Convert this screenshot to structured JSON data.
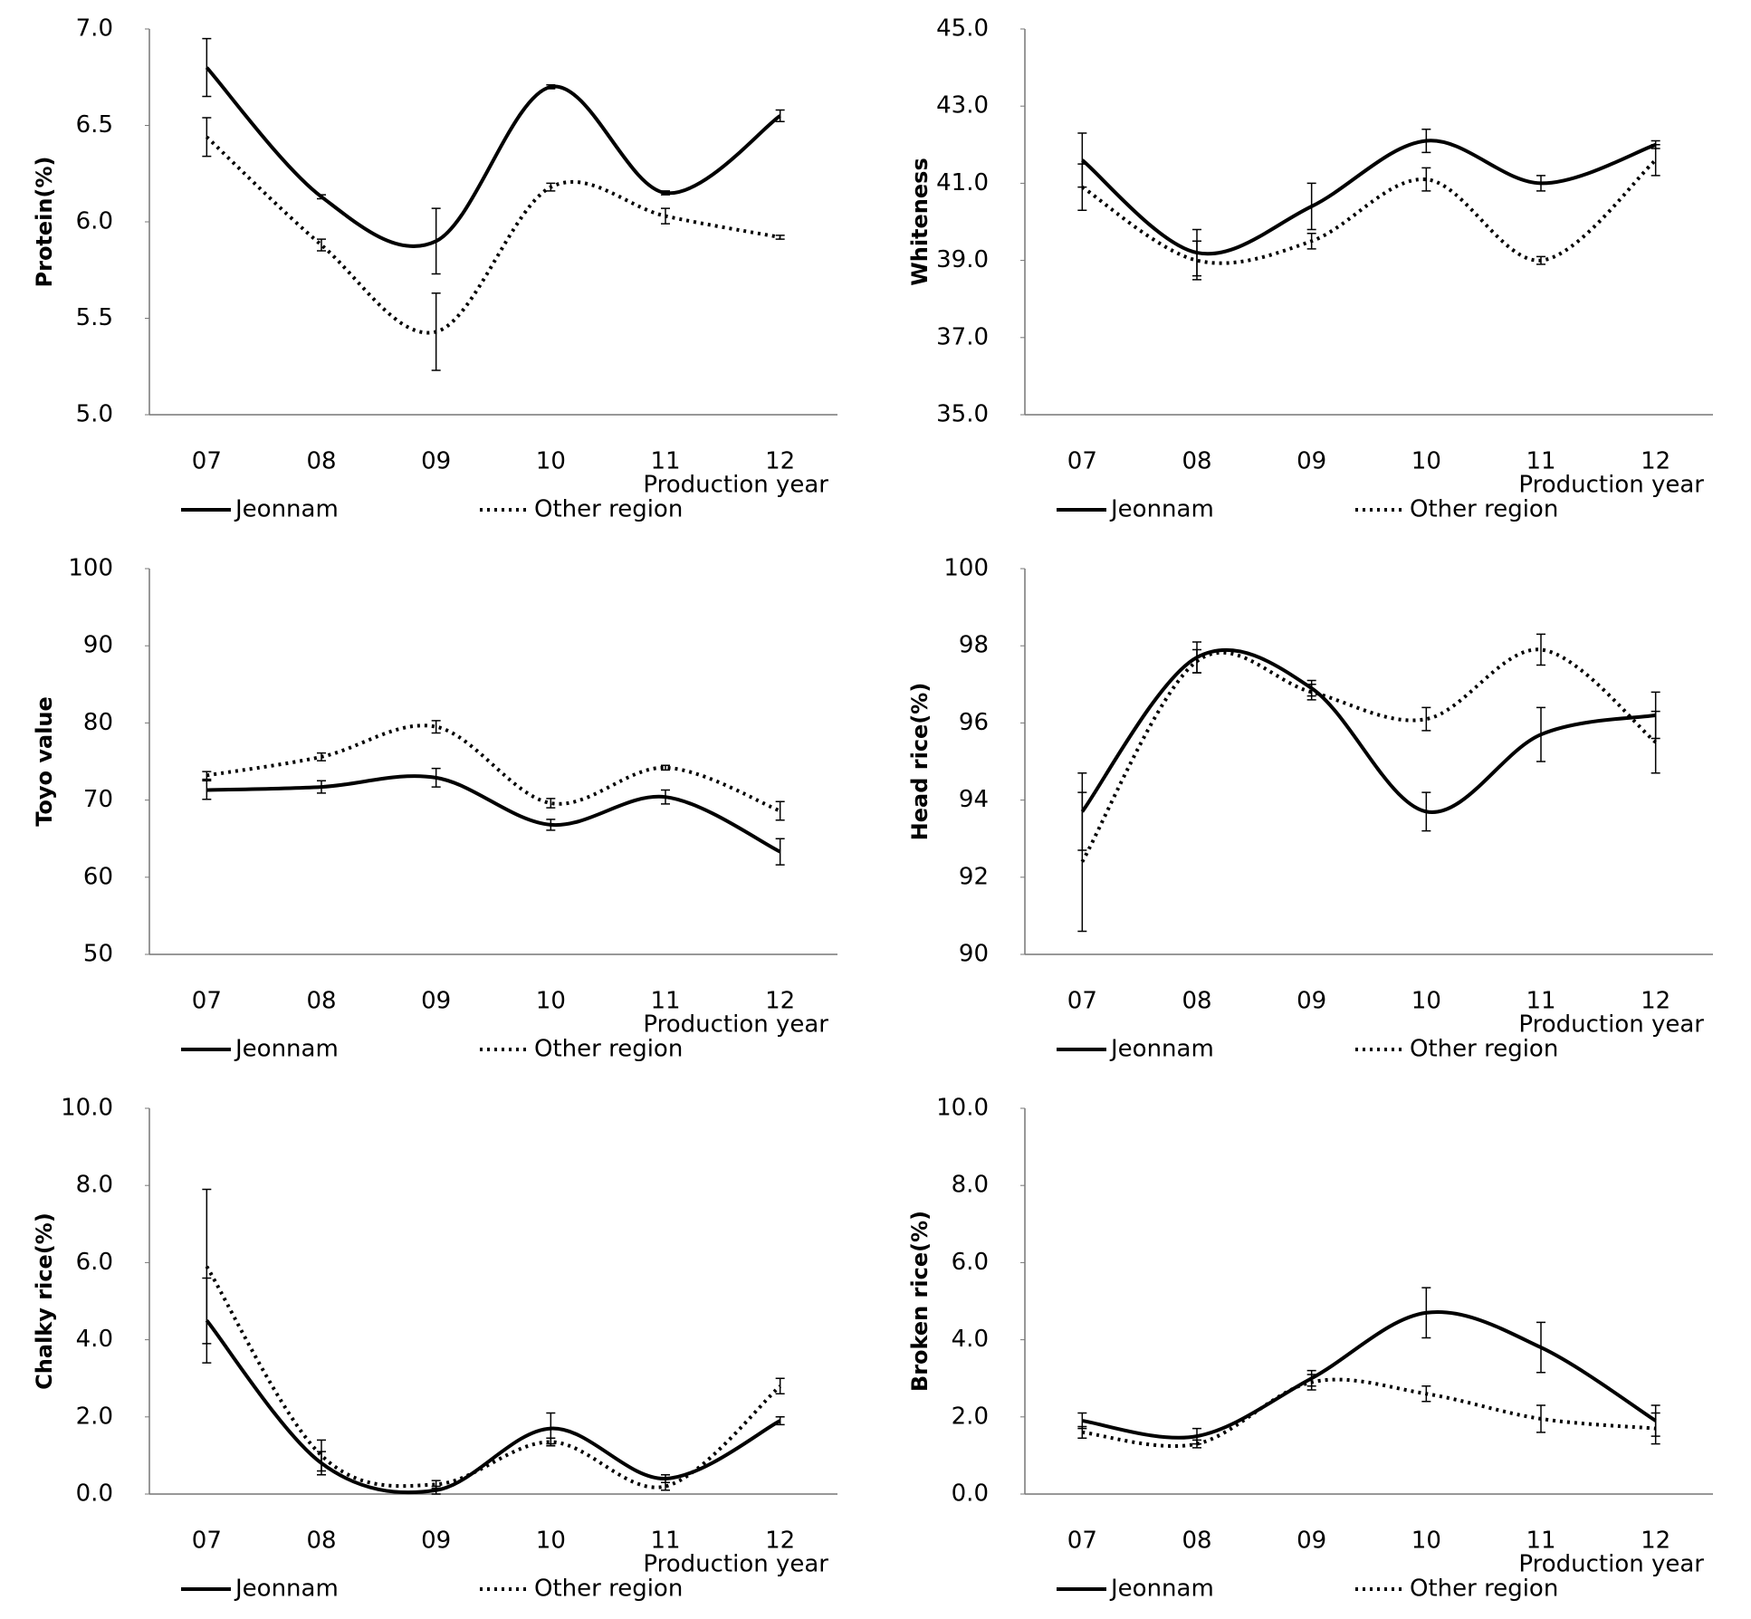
{
  "chart_data": [
    {
      "type": "line",
      "y_label": "Protein(%)",
      "x_label": "Production year",
      "categories": [
        "07",
        "08",
        "09",
        "10",
        "11",
        "12"
      ],
      "ylim": [
        5,
        7
      ],
      "yticks": [
        {
          "value": 5,
          "label": "5.0"
        },
        5.5,
        {
          "value": 6,
          "label": "6.0"
        },
        6.5,
        {
          "value": 7,
          "label": "7.0"
        }
      ],
      "series": [
        {
          "name": "Jeonnam",
          "color": "#000000",
          "style": "solid",
          "values": [
            6.8,
            6.13,
            5.9,
            6.7,
            6.15,
            6.55
          ],
          "errors": [
            0.15,
            0.01,
            0.17,
            0.01,
            0.01,
            0.03
          ]
        },
        {
          "name": "Other region",
          "color": "#000000",
          "style": "dotted",
          "values": [
            6.44,
            5.88,
            5.43,
            6.18,
            6.03,
            5.92
          ],
          "errors": [
            0.1,
            0.03,
            0.2,
            0.02,
            0.04,
            0.01
          ]
        }
      ]
    },
    {
      "type": "line",
      "y_label": "Whiteness",
      "x_label": "Production year",
      "categories": [
        "07",
        "08",
        "09",
        "10",
        "11",
        "12"
      ],
      "ylim": [
        35,
        45
      ],
      "yticks": [
        {
          "value": 35,
          "label": "35.0"
        },
        {
          "value": 37,
          "label": "37.0"
        },
        {
          "value": 39,
          "label": "39.0"
        },
        {
          "value": 41,
          "label": "41.0"
        },
        {
          "value": 43,
          "label": "43.0"
        },
        {
          "value": 45,
          "label": "45.0"
        }
      ],
      "series": [
        {
          "name": "Jeonnam",
          "color": "#000000",
          "style": "solid",
          "values": [
            41.6,
            39.2,
            40.4,
            42.1,
            41.0,
            42.0
          ],
          "errors": [
            0.7,
            0.6,
            0.6,
            0.3,
            0.2,
            0.1
          ]
        },
        {
          "name": "Other region",
          "color": "#000000",
          "style": "dotted",
          "values": [
            40.9,
            39.0,
            39.5,
            41.1,
            39.0,
            41.6
          ],
          "errors": [
            0.6,
            0.5,
            0.2,
            0.3,
            0.1,
            0.4
          ]
        }
      ]
    },
    {
      "type": "line",
      "y_label": "Toyo value",
      "x_label": "Production year",
      "categories": [
        "07",
        "08",
        "09",
        "10",
        "11",
        "12"
      ],
      "ylim": [
        50,
        100
      ],
      "yticks": [
        50,
        60,
        70,
        80,
        90,
        100
      ],
      "series": [
        {
          "name": "Jeonnam",
          "color": "#000000",
          "style": "solid",
          "values": [
            71.3,
            71.7,
            72.9,
            66.8,
            70.4,
            63.3
          ],
          "errors": [
            1.2,
            0.8,
            1.2,
            0.7,
            0.9,
            1.7
          ]
        },
        {
          "name": "Other region",
          "color": "#000000",
          "style": "dotted",
          "values": [
            73.2,
            75.6,
            79.5,
            69.6,
            74.2,
            68.6
          ],
          "errors": [
            0.5,
            0.5,
            0.8,
            0.6,
            0.3,
            1.2
          ]
        }
      ]
    },
    {
      "type": "line",
      "y_label": "Head rice(%)",
      "x_label": "Production year",
      "categories": [
        "07",
        "08",
        "09",
        "10",
        "11",
        "12"
      ],
      "ylim": [
        90,
        100
      ],
      "yticks": [
        90,
        92,
        94,
        96,
        98,
        100
      ],
      "series": [
        {
          "name": "Jeonnam",
          "color": "#000000",
          "style": "solid",
          "values": [
            93.7,
            97.7,
            96.9,
            93.7,
            95.7,
            96.2
          ],
          "errors": [
            1.0,
            0.4,
            0.2,
            0.5,
            0.7,
            0.6
          ]
        },
        {
          "name": "Other region",
          "color": "#000000",
          "style": "dotted",
          "values": [
            92.4,
            97.6,
            96.8,
            96.1,
            97.9,
            95.5
          ],
          "errors": [
            1.8,
            0.3,
            0.2,
            0.3,
            0.4,
            0.8
          ]
        }
      ]
    },
    {
      "type": "line",
      "y_label": "Chalky rice(%)",
      "x_label": "Production year",
      "categories": [
        "07",
        "08",
        "09",
        "10",
        "11",
        "12"
      ],
      "ylim": [
        0,
        10
      ],
      "yticks": [
        {
          "value": 0,
          "label": "0.0"
        },
        {
          "value": 2,
          "label": "2.0"
        },
        {
          "value": 4,
          "label": "4.0"
        },
        {
          "value": 6,
          "label": "6.0"
        },
        {
          "value": 8,
          "label": "8.0"
        },
        {
          "value": 10,
          "label": "10.0"
        }
      ],
      "series": [
        {
          "name": "Jeonnam",
          "color": "#000000",
          "style": "solid",
          "values": [
            4.5,
            0.8,
            0.1,
            1.7,
            0.4,
            1.9
          ],
          "errors": [
            1.1,
            0.3,
            0.1,
            0.4,
            0.1,
            0.1
          ]
        },
        {
          "name": "Other region",
          "color": "#000000",
          "style": "dotted",
          "values": [
            5.9,
            1.0,
            0.25,
            1.35,
            0.2,
            2.8
          ],
          "errors": [
            2.0,
            0.4,
            0.1,
            0.1,
            0.1,
            0.2
          ]
        }
      ]
    },
    {
      "type": "line",
      "y_label": "Broken rice(%)",
      "x_label": "Production year",
      "categories": [
        "07",
        "08",
        "09",
        "10",
        "11",
        "12"
      ],
      "ylim": [
        0,
        10
      ],
      "yticks": [
        {
          "value": 0,
          "label": "0.0"
        },
        {
          "value": 2,
          "label": "2.0"
        },
        {
          "value": 4,
          "label": "4.0"
        },
        {
          "value": 6,
          "label": "6.0"
        },
        {
          "value": 8,
          "label": "8.0"
        },
        {
          "value": 10,
          "label": "10.0"
        }
      ],
      "series": [
        {
          "name": "Jeonnam",
          "color": "#000000",
          "style": "solid",
          "values": [
            1.9,
            1.5,
            3.0,
            4.7,
            3.8,
            1.9
          ],
          "errors": [
            0.2,
            0.2,
            0.2,
            0.65,
            0.65,
            0.4
          ]
        },
        {
          "name": "Other region",
          "color": "#000000",
          "style": "dotted",
          "values": [
            1.6,
            1.3,
            2.9,
            2.6,
            1.95,
            1.7
          ],
          "errors": [
            0.15,
            0.1,
            0.2,
            0.2,
            0.35,
            0.4
          ]
        }
      ]
    }
  ]
}
